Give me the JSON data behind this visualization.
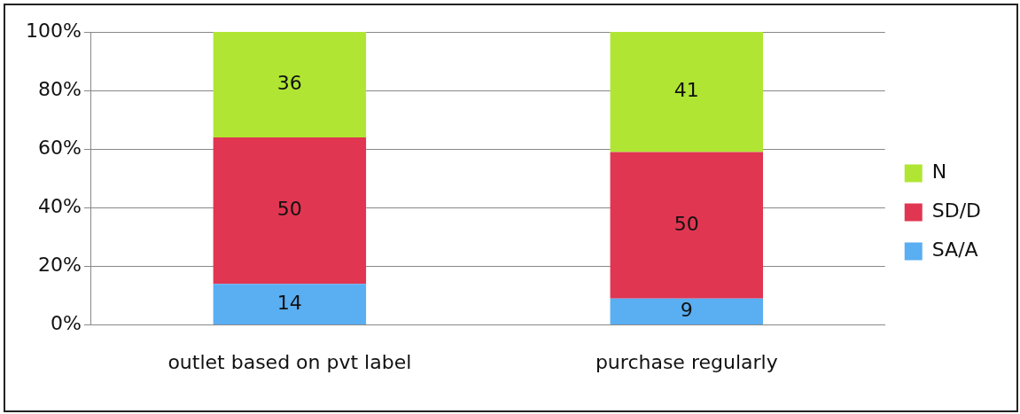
{
  "chart_data": {
    "type": "bar",
    "stacked": true,
    "categories": [
      "outlet based on pvt label",
      "purchase regularly"
    ],
    "series": [
      {
        "name": "SA/A",
        "color": "#5aaef2",
        "values": [
          14,
          9
        ]
      },
      {
        "name": "SD/D",
        "color": "#e03651",
        "values": [
          50,
          50
        ]
      },
      {
        "name": "N",
        "color": "#b0e633",
        "values": [
          36,
          41
        ]
      }
    ],
    "ylim": [
      0,
      100
    ],
    "yticks": [
      {
        "value": 0,
        "label": "0%"
      },
      {
        "value": 20,
        "label": "20%"
      },
      {
        "value": 40,
        "label": "40%"
      },
      {
        "value": 60,
        "label": "60%"
      },
      {
        "value": 80,
        "label": "80%"
      },
      {
        "value": 100,
        "label": "100%"
      }
    ],
    "grid": "y",
    "legend": "right",
    "data_labels": true
  }
}
